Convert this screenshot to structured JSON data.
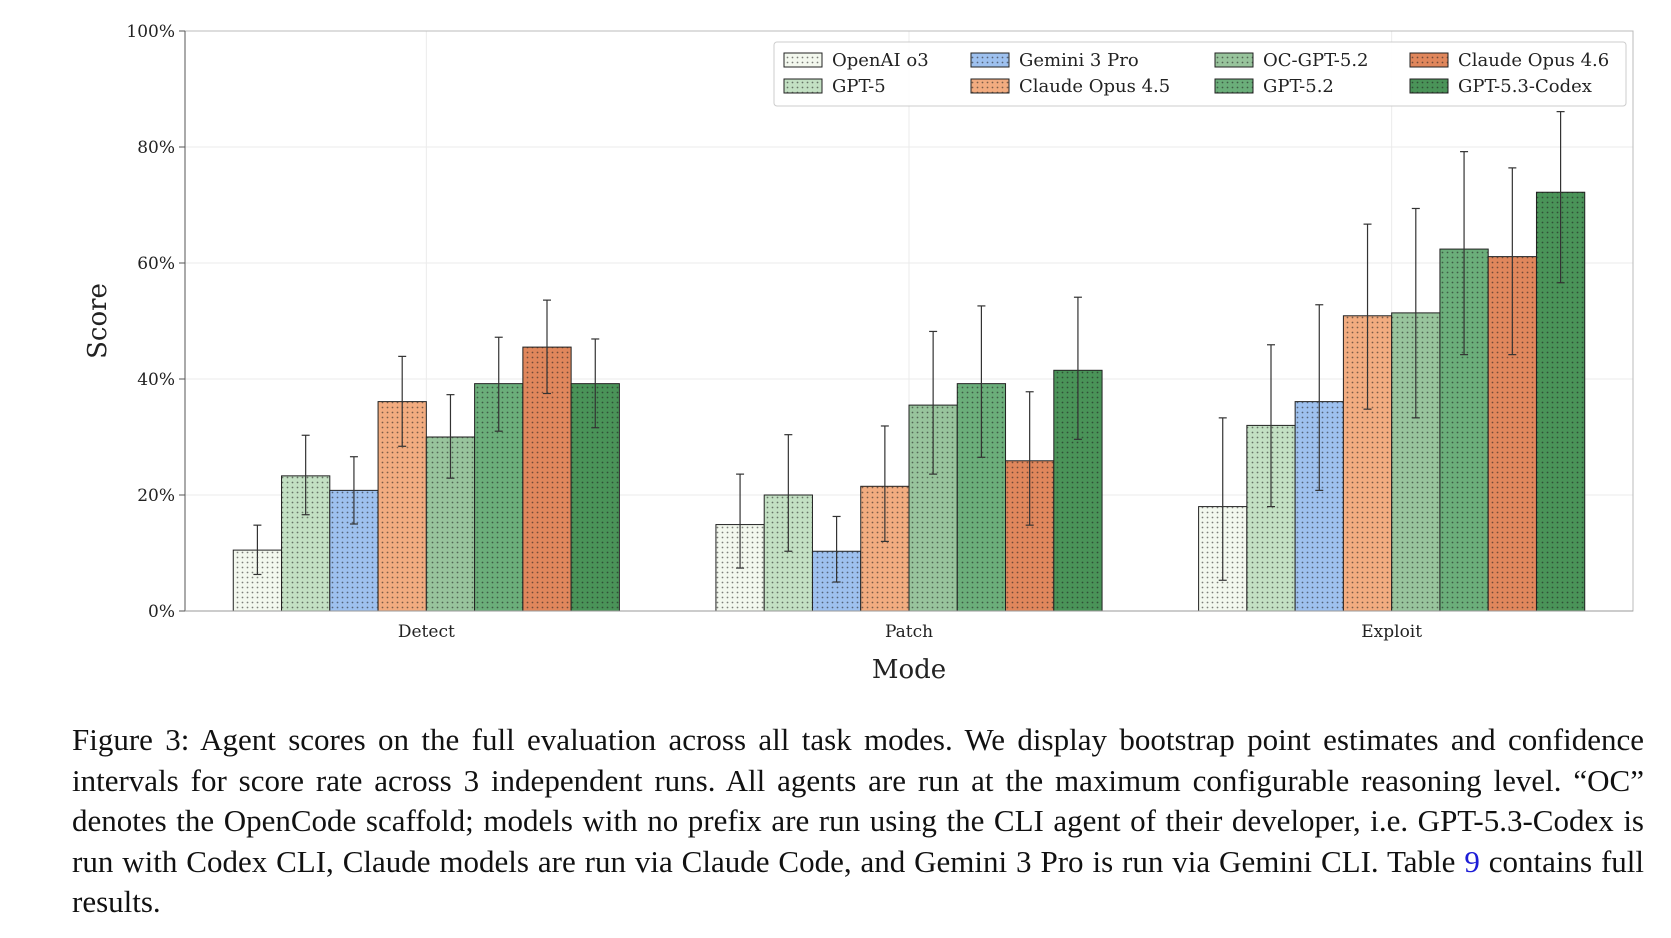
{
  "chart_data": {
    "type": "bar",
    "xlabel": "Mode",
    "ylabel": "Score",
    "ylim": [
      0,
      100
    ],
    "yticks": [
      "0%",
      "20%",
      "40%",
      "60%",
      "80%",
      "100%"
    ],
    "ytick_values": [
      0,
      20,
      40,
      60,
      80,
      100
    ],
    "grid": true,
    "legend_position": "top-right",
    "categories": [
      "Detect",
      "Patch",
      "Exploit"
    ],
    "series": [
      {
        "name": "OpenAI o3",
        "color": "#f3f8ee",
        "values": [
          10.5,
          14.9,
          18.0
        ],
        "lower": [
          6.3,
          7.4,
          5.3
        ],
        "upper": [
          14.8,
          23.6,
          33.3
        ]
      },
      {
        "name": "GPT-5",
        "color": "#c3e0c3",
        "values": [
          23.3,
          20.0,
          32.0
        ],
        "lower": [
          16.6,
          10.3,
          18.0
        ],
        "upper": [
          30.3,
          30.4,
          45.9
        ]
      },
      {
        "name": "Gemini 3 Pro",
        "color": "#9ec1ef",
        "values": [
          20.8,
          10.3,
          36.1
        ],
        "lower": [
          15.0,
          5.0,
          20.8
        ],
        "upper": [
          26.6,
          16.3,
          52.8
        ]
      },
      {
        "name": "Claude Opus 4.5",
        "color": "#f2ac80",
        "values": [
          36.1,
          21.5,
          50.9
        ],
        "lower": [
          28.4,
          12.0,
          34.8
        ],
        "upper": [
          43.9,
          31.9,
          66.7
        ]
      },
      {
        "name": "OC-GPT-5.2",
        "color": "#98c49c",
        "values": [
          30.0,
          35.5,
          51.4
        ],
        "lower": [
          22.9,
          23.6,
          33.3
        ],
        "upper": [
          37.3,
          48.2,
          69.4
        ]
      },
      {
        "name": "GPT-5.2",
        "color": "#6bae7a",
        "values": [
          39.2,
          39.2,
          62.4
        ],
        "lower": [
          31.0,
          26.5,
          44.2
        ],
        "upper": [
          47.2,
          52.6,
          79.2
        ]
      },
      {
        "name": "Claude Opus 4.6",
        "color": "#e0875c",
        "values": [
          45.5,
          25.9,
          61.1
        ],
        "lower": [
          37.5,
          14.8,
          44.2
        ],
        "upper": [
          53.6,
          37.8,
          76.4
        ]
      },
      {
        "name": "GPT-5.3-Codex",
        "color": "#4a9358",
        "values": [
          39.2,
          41.5,
          72.2
        ],
        "lower": [
          31.6,
          29.6,
          56.6
        ],
        "upper": [
          46.9,
          54.1,
          86.1
        ]
      }
    ]
  },
  "caption": {
    "before_ref": "Figure 3: Agent scores on the full evaluation across all task modes. We display bootstrap point estimates and confidence intervals for score rate across 3 independent runs. All agents are run at the maximum configurable reasoning level. “OC” denotes the OpenCode scaffold; models with no prefix are run using the CLI agent of their developer, i.e. GPT-5.3-Codex is run with Codex CLI, Claude models are run via Claude Code, and Gemini 3 Pro is run via Gemini CLI. Table ",
    "ref": "9",
    "after_ref": " contains full results."
  }
}
